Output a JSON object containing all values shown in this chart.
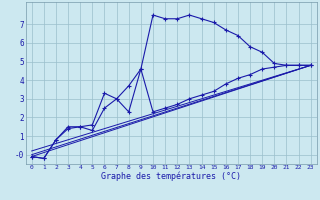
{
  "xlabel": "Graphe des températures (°C)",
  "xlim": [
    -0.5,
    23.5
  ],
  "ylim": [
    -0.5,
    8.2
  ],
  "background_color": "#cce8f0",
  "line_color": "#1a1aaa",
  "grid_color": "#9bbfcc",
  "xticks": [
    0,
    1,
    2,
    3,
    4,
    5,
    6,
    7,
    8,
    9,
    10,
    11,
    12,
    13,
    14,
    15,
    16,
    17,
    18,
    19,
    20,
    21,
    22,
    23
  ],
  "yticks": [
    0,
    1,
    2,
    3,
    4,
    5,
    6,
    7
  ],
  "ytick_labels": [
    "-0",
    "1",
    "2",
    "3",
    "4",
    "5",
    "6",
    "7"
  ],
  "s1x": [
    0,
    1,
    2,
    3,
    4,
    5,
    6,
    7,
    8,
    9,
    10,
    11,
    12,
    13,
    14,
    15,
    16,
    17,
    18,
    19,
    20,
    21,
    22,
    23
  ],
  "s1y": [
    -0.1,
    -0.2,
    0.8,
    1.4,
    1.5,
    1.6,
    3.3,
    3.0,
    3.7,
    4.6,
    7.5,
    7.3,
    7.3,
    7.5,
    7.3,
    7.1,
    6.7,
    6.4,
    5.8,
    5.5,
    4.9,
    4.8,
    4.8,
    4.8
  ],
  "s2x": [
    0,
    1,
    2,
    3,
    4,
    5,
    6,
    7,
    8,
    9,
    10,
    11,
    12,
    13,
    14,
    15,
    16,
    17,
    18,
    19,
    20,
    21,
    22,
    23
  ],
  "s2y": [
    -0.1,
    -0.2,
    0.8,
    1.5,
    1.5,
    1.3,
    2.5,
    3.0,
    2.3,
    4.6,
    2.3,
    2.5,
    2.7,
    3.0,
    3.2,
    3.4,
    3.8,
    4.1,
    4.3,
    4.6,
    4.7,
    4.8,
    4.8,
    4.8
  ],
  "s3x": [
    0,
    23
  ],
  "s3y": [
    -0.1,
    4.8
  ],
  "s4x": [
    0,
    23
  ],
  "s4y": [
    0.0,
    4.8
  ],
  "s5x": [
    0,
    23
  ],
  "s5y": [
    0.2,
    4.8
  ]
}
